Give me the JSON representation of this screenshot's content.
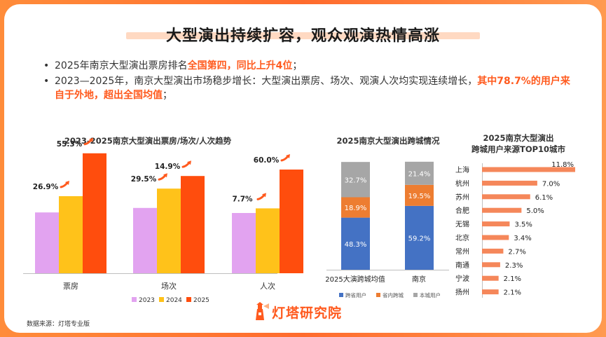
{
  "title": "大型演出持续扩容，观众观演热情高涨",
  "bullets": [
    {
      "parts": [
        {
          "t": "2025年南京大型演出票房排名",
          "hl": false
        },
        {
          "t": "全国第四，同比上升4位",
          "hl": true
        },
        {
          "t": "；",
          "hl": false
        }
      ]
    },
    {
      "parts": [
        {
          "t": "2023—2025年，南京大型演出市场稳步增长：大型演出票房、场次、观演人次均实现连续增长，",
          "hl": false
        },
        {
          "t": "其中78.7%的用户来自于外地，超出全国均值",
          "hl": true
        },
        {
          "t": "；",
          "hl": false
        }
      ]
    }
  ],
  "colors": {
    "y2023": "#e2a3f0",
    "y2024": "#ffc21a",
    "y2025": "#ff4d0d",
    "cross_prov": "#4472c4",
    "in_prov": "#ed7d31",
    "local": "#a6a6a6",
    "top10": "#f5875a",
    "arrow": "#ff5a1e"
  },
  "chart_data": [
    {
      "type": "bar",
      "title": "2023-2025南京大型演出票房/场次/人次趋势",
      "categories": [
        "票房",
        "场次",
        "人次"
      ],
      "series": [
        {
          "name": "2023"
        },
        {
          "name": "2024"
        },
        {
          "name": "2025"
        }
      ],
      "growth_labels": [
        [
          "26.9%",
          "55.3%"
        ],
        [
          "29.5%",
          "14.9%"
        ],
        [
          "7.7%",
          "60.0%"
        ]
      ],
      "relative_heights": [
        [
          0.434,
          0.55,
          0.856
        ],
        [
          0.466,
          0.604,
          0.694
        ],
        [
          0.43,
          0.463,
          0.74
        ]
      ]
    },
    {
      "type": "bar",
      "stacked": true,
      "title": "2025南京大型演出跨城情况",
      "categories": [
        "2025大演跨城均值",
        "南京"
      ],
      "series": [
        {
          "name": "跨省用户",
          "values": [
            48.3,
            59.2
          ],
          "labels": [
            "48.3%",
            "59.2%"
          ]
        },
        {
          "name": "省内跨城",
          "values": [
            18.9,
            19.5
          ],
          "labels": [
            "18.9%",
            "19.5%"
          ]
        },
        {
          "name": "本城用户",
          "values": [
            32.7,
            21.4
          ],
          "labels": [
            "32.7%",
            "21.4%"
          ]
        }
      ]
    },
    {
      "type": "bar",
      "orientation": "horizontal",
      "title": [
        "2025南京大型演出",
        "跨城用户来源TOP10城市"
      ],
      "categories": [
        "上海",
        "杭州",
        "苏州",
        "合肥",
        "无锡",
        "北京",
        "常州",
        "南通",
        "宁波",
        "扬州"
      ],
      "values": [
        11.8,
        7.0,
        6.1,
        5.0,
        3.5,
        3.4,
        2.7,
        2.3,
        2.1,
        2.1
      ],
      "labels": [
        "11.8%",
        "7.0%",
        "6.1%",
        "5.0%",
        "3.5%",
        "3.4%",
        "2.7%",
        "2.3%",
        "2.1%",
        "2.1%"
      ]
    }
  ],
  "source": "数据来源：灯塔专业版",
  "logo_text": "灯塔研究院"
}
